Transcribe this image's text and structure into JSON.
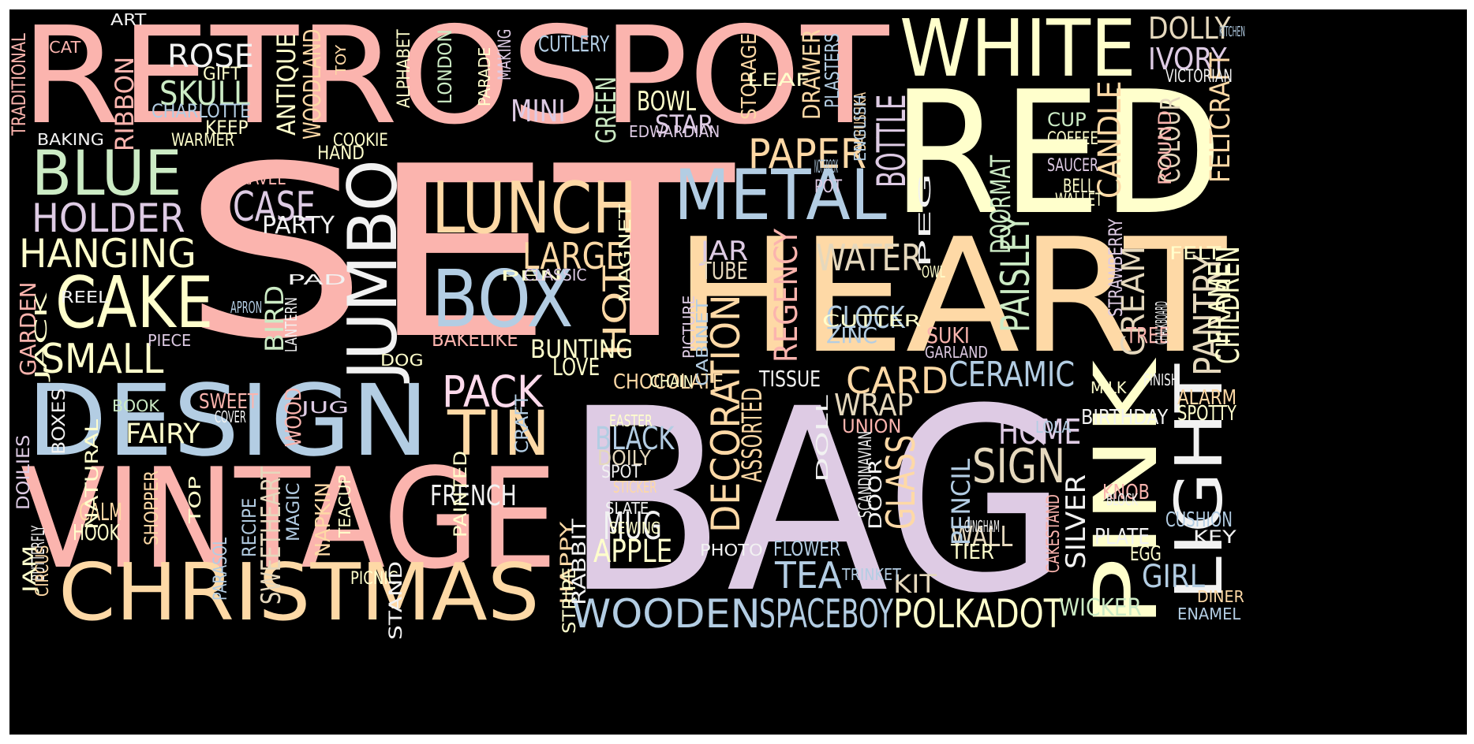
{
  "wordcloud": {
    "background": "#000000",
    "palette": {
      "pink": "#fbb4ae",
      "blue": "#b3cde3",
      "green": "#ccebc5",
      "lilac": "#decbe4",
      "orange": "#fed9a6",
      "yellow": "#ffffcc",
      "tan": "#e5d8bd",
      "rose": "#fddaec",
      "gray": "#f2f2f2"
    },
    "words": [
      {
        "t": "SET",
        "c": "pink"
      },
      {
        "t": "BAG",
        "c": "lilac"
      },
      {
        "t": "RETROSPOT",
        "c": "pink"
      },
      {
        "t": "RED",
        "c": "yellow"
      },
      {
        "t": "HEART",
        "c": "orange"
      },
      {
        "t": "VINTAGE",
        "c": "pink"
      },
      {
        "t": "CHRISTMAS",
        "c": "orange"
      },
      {
        "t": "DESIGN",
        "c": "blue"
      },
      {
        "t": "PINK",
        "c": "yellow"
      },
      {
        "t": "WHITE",
        "c": "yellow"
      },
      {
        "t": "LIGHT",
        "c": "gray"
      },
      {
        "t": "JUMBO",
        "c": "gray"
      },
      {
        "t": "METAL",
        "c": "blue"
      },
      {
        "t": "LUNCH",
        "c": "orange"
      },
      {
        "t": "BOX",
        "c": "blue"
      },
      {
        "t": "CAKE",
        "c": "yellow"
      },
      {
        "t": "BLUE",
        "c": "green"
      },
      {
        "t": "TIN",
        "c": "orange"
      },
      {
        "t": "WOODEN",
        "c": "blue"
      },
      {
        "t": "SPACEBOY",
        "c": "blue"
      },
      {
        "t": "POLKADOT",
        "c": "yellow"
      },
      {
        "t": "HOLDER",
        "c": "lilac"
      },
      {
        "t": "HANGING",
        "c": "yellow"
      },
      {
        "t": "PACK",
        "c": "rose"
      },
      {
        "t": "SMALL",
        "c": "yellow"
      },
      {
        "t": "CARD",
        "c": "orange"
      },
      {
        "t": "DECORATION",
        "c": "orange"
      },
      {
        "t": "PAPER",
        "c": "orange"
      },
      {
        "t": "CASE",
        "c": "lilac"
      },
      {
        "t": "SIGN",
        "c": "tan"
      },
      {
        "t": "GLASS",
        "c": "orange"
      },
      {
        "t": "BOTTLE",
        "c": "lilac"
      },
      {
        "t": "WATER",
        "c": "tan"
      },
      {
        "t": "LARGE",
        "c": "orange"
      },
      {
        "t": "DOLLY",
        "c": "tan"
      },
      {
        "t": "IVORY",
        "c": "lilac"
      },
      {
        "t": "ROSE",
        "c": "gray"
      },
      {
        "t": "SKULL",
        "c": "green"
      },
      {
        "t": "CERAMIC",
        "c": "blue"
      },
      {
        "t": "HOME",
        "c": "lilac"
      },
      {
        "t": "PAISLEY",
        "c": "green"
      },
      {
        "t": "REGENCY",
        "c": "pink"
      },
      {
        "t": "CANDLE",
        "c": "orange"
      },
      {
        "t": "PANTRY",
        "c": "tan"
      },
      {
        "t": "CREAM",
        "c": "tan"
      },
      {
        "t": "TEA",
        "c": "blue"
      },
      {
        "t": "MUG",
        "c": "gray"
      },
      {
        "t": "APPLE",
        "c": "yellow"
      },
      {
        "t": "CLOCK",
        "c": "blue"
      },
      {
        "t": "HOT",
        "c": "orange"
      },
      {
        "t": "BLACK",
        "c": "blue"
      },
      {
        "t": "FRENCH",
        "c": "gray"
      },
      {
        "t": "GIRL",
        "c": "blue"
      },
      {
        "t": "FAIRY",
        "c": "yellow"
      },
      {
        "t": "COLOUR",
        "c": "tan"
      },
      {
        "t": "CHILDREN",
        "c": "yellow"
      },
      {
        "t": "FRAME",
        "c": "yellow"
      },
      {
        "t": "WALL",
        "c": "tan"
      },
      {
        "t": "WRAP",
        "c": "tan"
      },
      {
        "t": "DOORMAT",
        "c": "green"
      },
      {
        "t": "PENCIL",
        "c": "blue"
      },
      {
        "t": "SILVER",
        "c": "gray"
      },
      {
        "t": "ASSORTED",
        "c": "orange"
      },
      {
        "t": "ANTIQUE",
        "c": "yellow"
      },
      {
        "t": "RIBBON",
        "c": "pink"
      },
      {
        "t": "WOODLAND",
        "c": "orange"
      },
      {
        "t": "DRAWER",
        "c": "orange"
      },
      {
        "t": "GREEN",
        "c": "green"
      },
      {
        "t": "MINI",
        "c": "lilac"
      },
      {
        "t": "LOVE",
        "c": "yellow"
      },
      {
        "t": "BUNTING",
        "c": "yellow"
      },
      {
        "t": "BIRD",
        "c": "green"
      },
      {
        "t": "KIT",
        "c": "tan"
      },
      {
        "t": "SWEETHEART",
        "c": "tan"
      },
      {
        "t": "FELTCRAFT",
        "c": "orange"
      },
      {
        "t": "WOOD",
        "c": "pink"
      },
      {
        "t": "STAR",
        "c": "lilac"
      },
      {
        "t": "BOWL",
        "c": "yellow"
      },
      {
        "t": "JAR",
        "c": "lilac"
      },
      {
        "t": "PARTY",
        "c": "gray"
      },
      {
        "t": "TUBE",
        "c": "tan"
      },
      {
        "t": "ZINC",
        "c": "blue"
      },
      {
        "t": "WICKER",
        "c": "green"
      },
      {
        "t": "GARDEN",
        "c": "pink"
      },
      {
        "t": "CHOCOLATE",
        "c": "orange"
      },
      {
        "t": "HOOK",
        "c": "yellow"
      },
      {
        "t": "CALM",
        "c": "orange"
      },
      {
        "t": "SHOPPER",
        "c": "orange"
      },
      {
        "t": "TISSUE",
        "c": "gray"
      },
      {
        "t": "STORAGE",
        "c": "orange"
      },
      {
        "t": "CHARLOTTE",
        "c": "blue"
      },
      {
        "t": "BAKELIKE",
        "c": "pink"
      },
      {
        "t": "DOILY",
        "c": "tan"
      },
      {
        "t": "PLATE",
        "c": "gray"
      },
      {
        "t": "BIRTHDAY",
        "c": "gray"
      },
      {
        "t": "CUTLERY",
        "c": "blue"
      },
      {
        "t": "SUKI",
        "c": "pink"
      },
      {
        "t": "TREE",
        "c": "pink"
      },
      {
        "t": "ALARM",
        "c": "orange"
      },
      {
        "t": "SPOTTY",
        "c": "yellow"
      },
      {
        "t": "UNION",
        "c": "pink"
      },
      {
        "t": "SWEET",
        "c": "pink"
      },
      {
        "t": "FLOWER",
        "c": "blue"
      },
      {
        "t": "STRAWBERRY",
        "c": "lilac"
      },
      {
        "t": "PLASTERS",
        "c": "blue"
      },
      {
        "t": "RECIPE",
        "c": "blue"
      },
      {
        "t": "NAPKIN",
        "c": "orange"
      },
      {
        "t": "CUSHION",
        "c": "blue"
      },
      {
        "t": "KNOB",
        "c": "pink"
      },
      {
        "t": "EGG",
        "c": "yellow"
      },
      {
        "t": "TIER",
        "c": "yellow"
      },
      {
        "t": "CAKESTAND",
        "c": "pink"
      },
      {
        "t": "KEEP",
        "c": "yellow"
      },
      {
        "t": "TRAVEL",
        "c": "pink"
      },
      {
        "t": "COOKIE",
        "c": "yellow"
      },
      {
        "t": "HAND",
        "c": "yellow"
      },
      {
        "t": "CUP",
        "c": "green"
      },
      {
        "t": "COFFEE",
        "c": "yellow"
      },
      {
        "t": "SAUCER",
        "c": "lilac"
      },
      {
        "t": "BELL",
        "c": "yellow"
      },
      {
        "t": "WALLET",
        "c": "yellow"
      },
      {
        "t": "TRADITIONAL",
        "c": "pink"
      },
      {
        "t": "BAKING",
        "c": "gray"
      },
      {
        "t": "WARMER",
        "c": "yellow"
      },
      {
        "t": "GIFT",
        "c": "yellow"
      },
      {
        "t": "ART",
        "c": "gray"
      },
      {
        "t": "CAT",
        "c": "pink"
      },
      {
        "t": "ALPHABET",
        "c": "yellow"
      },
      {
        "t": "LONDON",
        "c": "green"
      },
      {
        "t": "PARADE",
        "c": "yellow"
      },
      {
        "t": "MAKING",
        "c": "lilac"
      },
      {
        "t": "TOY",
        "c": "orange"
      },
      {
        "t": "LEAF",
        "c": "yellow"
      },
      {
        "t": "BABUSHKA",
        "c": "orange"
      },
      {
        "t": "ENGLISH",
        "c": "blue"
      },
      {
        "t": "EDWARDIAN",
        "c": "lilac"
      },
      {
        "t": "VICTORIAN",
        "c": "gray"
      },
      {
        "t": "KITCHEN",
        "c": "blue"
      },
      {
        "t": "PAD",
        "c": "gray"
      },
      {
        "t": "APRON",
        "c": "blue"
      },
      {
        "t": "PEN",
        "c": "yellow"
      },
      {
        "t": "CLASSIC",
        "c": "lilac"
      },
      {
        "t": "MAGNET",
        "c": "yellow"
      },
      {
        "t": "NOTEBOOK",
        "c": "blue"
      },
      {
        "t": "POT",
        "c": "lilac"
      },
      {
        "t": "OWL",
        "c": "yellow"
      },
      {
        "t": "PEG",
        "c": "gray"
      },
      {
        "t": "CUTTER",
        "c": "yellow"
      },
      {
        "t": "CHALKBOARD",
        "c": "gray"
      },
      {
        "t": "FELT",
        "c": "yellow"
      },
      {
        "t": "ROUND",
        "c": "pink"
      },
      {
        "t": "GARLAND",
        "c": "lilac"
      },
      {
        "t": "FINISH",
        "c": "gray"
      },
      {
        "t": "MILK",
        "c": "yellow"
      },
      {
        "t": "LOLA",
        "c": "blue"
      },
      {
        "t": "REEL",
        "c": "gray"
      },
      {
        "t": "JACK",
        "c": "yellow"
      },
      {
        "t": "LANTERN",
        "c": "gray"
      },
      {
        "t": "PIECE",
        "c": "lilac"
      },
      {
        "t": "DOG",
        "c": "yellow"
      },
      {
        "t": "CHAIN",
        "c": "yellow"
      },
      {
        "t": "CRAFT",
        "c": "blue"
      },
      {
        "t": "CABINET",
        "c": "blue"
      },
      {
        "t": "PICTURE",
        "c": "lilac"
      },
      {
        "t": "BOOK",
        "c": "green"
      },
      {
        "t": "COVER",
        "c": "gray"
      },
      {
        "t": "JUG",
        "c": "lilac"
      },
      {
        "t": "BOXES",
        "c": "gray"
      },
      {
        "t": "DOILIES",
        "c": "lilac"
      },
      {
        "t": "NATURAL",
        "c": "yellow"
      },
      {
        "t": "SCANDINAVIAN",
        "c": "gray"
      },
      {
        "t": "EASTER",
        "c": "yellow"
      },
      {
        "t": "SPOT",
        "c": "gray"
      },
      {
        "t": "DOLL",
        "c": "gray"
      },
      {
        "t": "PAINTED",
        "c": "yellow"
      },
      {
        "t": "MAGIC",
        "c": "blue"
      },
      {
        "t": "TOP",
        "c": "yellow"
      },
      {
        "t": "TEACUP",
        "c": "yellow"
      },
      {
        "t": "STICKER",
        "c": "orange"
      },
      {
        "t": "SLATE",
        "c": "gray"
      },
      {
        "t": "HAPPY",
        "c": "orange"
      },
      {
        "t": "SEWING",
        "c": "yellow"
      },
      {
        "t": "PHOTO",
        "c": "gray"
      },
      {
        "t": "GINGHAM",
        "c": "gray"
      },
      {
        "t": "DOOR",
        "c": "gray"
      },
      {
        "t": "BLOCK",
        "c": "gray"
      },
      {
        "t": "KEY",
        "c": "gray"
      },
      {
        "t": "DINER",
        "c": "orange"
      },
      {
        "t": "ENAMEL",
        "c": "blue"
      },
      {
        "t": "BUTTERFLY",
        "c": "gray"
      },
      {
        "t": "JAM",
        "c": "yellow"
      },
      {
        "t": "CIRCUS",
        "c": "orange"
      },
      {
        "t": "PARASOL",
        "c": "blue"
      },
      {
        "t": "PICNIC",
        "c": "yellow"
      },
      {
        "t": "STAND",
        "c": "gray"
      },
      {
        "t": "STRIPE",
        "c": "yellow"
      },
      {
        "t": "RABBIT",
        "c": "gray"
      },
      {
        "t": "TRINKET",
        "c": "blue"
      },
      {
        "t": "BISCUIT",
        "c": "gray"
      }
    ]
  }
}
